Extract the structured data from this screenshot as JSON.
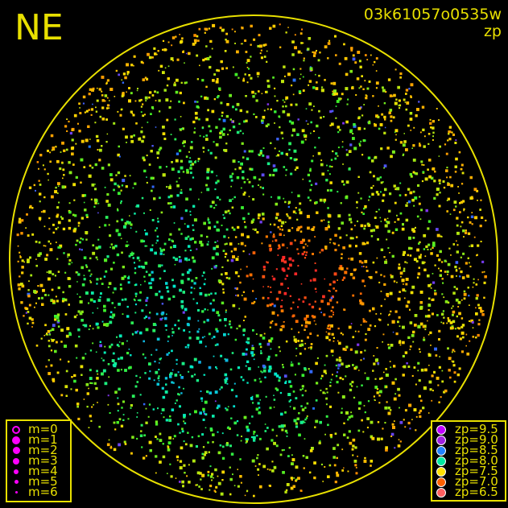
{
  "direction_label": "NE",
  "title": "03k61057o0535w",
  "subtitle": "zp",
  "chart_data": {
    "type": "scatter",
    "title": "03k61057o0535w",
    "subtitle": "zp",
    "grid": false,
    "horizon_circle_color": "#e8e000",
    "magnitude_legend": {
      "placement": "bottom-left",
      "color": "#ff00ff",
      "entries": [
        "m=0",
        "m=1",
        "m=2",
        "m=3",
        "m=4",
        "m=5",
        "m=6"
      ]
    },
    "zp_legend": {
      "placement": "bottom-right",
      "entries": [
        {
          "label": "zp=9.5",
          "value": 9.5,
          "color": "#c000ff"
        },
        {
          "label": "zp=9.0",
          "value": 9.0,
          "color": "#a020e0"
        },
        {
          "label": "zp=8.5",
          "value": 8.5,
          "color": "#2080ff"
        },
        {
          "label": "zp=8.0",
          "value": 8.0,
          "color": "#00e8a0"
        },
        {
          "label": "zp=7.5",
          "value": 7.5,
          "color": "#ffe000"
        },
        {
          "label": "zp=7.0",
          "value": 7.0,
          "color": "#ff6000"
        },
        {
          "label": "zp=6.5",
          "value": 6.5,
          "color": "#ff6060"
        }
      ]
    }
  }
}
